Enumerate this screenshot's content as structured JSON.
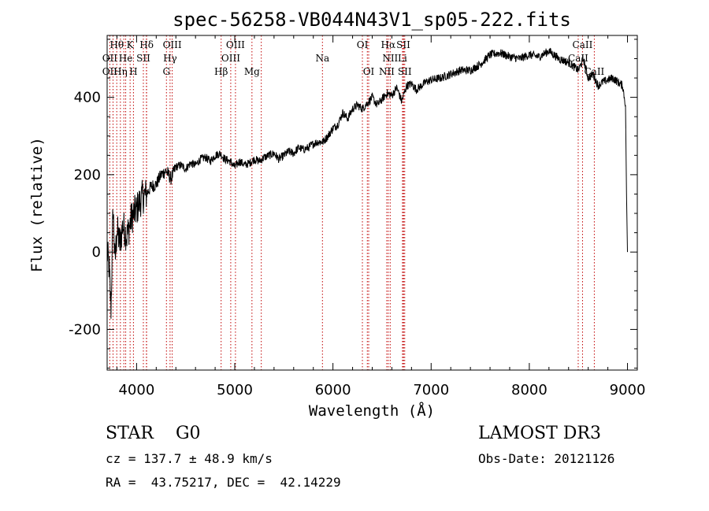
{
  "chart_data": {
    "type": "line",
    "title": "spec-56258-VB044N43V1_sp05-222.fits",
    "xlabel": "Wavelength (Å)",
    "ylabel": "Flux (relative)",
    "xlim": [
      3700,
      9100
    ],
    "ylim": [
      -305,
      560
    ],
    "x_ticks": [
      4000,
      5000,
      6000,
      7000,
      8000,
      9000
    ],
    "y_ticks": [
      -200,
      0,
      200,
      400
    ],
    "series": [
      {
        "name": "flux",
        "x": [
          3700,
          3720,
          3740,
          3760,
          3780,
          3800,
          3830,
          3860,
          3900,
          3950,
          4000,
          4050,
          4100,
          4150,
          4200,
          4250,
          4300,
          4350,
          4400,
          4450,
          4500,
          4550,
          4600,
          4650,
          4700,
          4750,
          4800,
          4850,
          4900,
          4950,
          5000,
          5050,
          5100,
          5150,
          5200,
          5250,
          5300,
          5350,
          5400,
          5450,
          5500,
          5550,
          5600,
          5650,
          5700,
          5750,
          5800,
          5850,
          5900,
          5950,
          6000,
          6050,
          6100,
          6150,
          6200,
          6250,
          6300,
          6350,
          6400,
          6450,
          6500,
          6550,
          6600,
          6650,
          6700,
          6750,
          6800,
          6850,
          6900,
          6950,
          7000,
          7100,
          7200,
          7300,
          7400,
          7500,
          7600,
          7700,
          7800,
          7900,
          8000,
          8100,
          8200,
          8300,
          8400,
          8500,
          8550,
          8600,
          8650,
          8700,
          8750,
          8800,
          8850,
          8900,
          8950,
          8980,
          8990,
          9000
        ],
        "y": [
          0,
          -40,
          -150,
          120,
          -30,
          60,
          20,
          70,
          40,
          90,
          110,
          140,
          150,
          170,
          175,
          200,
          210,
          190,
          220,
          225,
          215,
          230,
          225,
          240,
          245,
          235,
          250,
          255,
          240,
          235,
          220,
          235,
          225,
          230,
          240,
          235,
          245,
          250,
          255,
          240,
          250,
          260,
          255,
          270,
          265,
          270,
          280,
          285,
          285,
          300,
          320,
          330,
          360,
          345,
          370,
          380,
          370,
          385,
          400,
          380,
          395,
          410,
          405,
          425,
          390,
          430,
          435,
          420,
          430,
          440,
          445,
          450,
          460,
          470,
          470,
          485,
          510,
          515,
          505,
          500,
          510,
          505,
          520,
          500,
          490,
          470,
          500,
          450,
          460,
          430,
          440,
          445,
          450,
          440,
          430,
          380,
          150,
          0
        ]
      }
    ],
    "spectral_lines": [
      {
        "row": 0,
        "label": "Hθ",
        "wl": 3798
      },
      {
        "row": 0,
        "label": "K",
        "wl": 3934
      },
      {
        "row": 0,
        "label": "Hδ",
        "wl": 4102
      },
      {
        "row": 0,
        "label": "OIII",
        "wl": 4363
      },
      {
        "row": 0,
        "label": "OIII",
        "wl": 5007
      },
      {
        "row": 0,
        "label": "OI",
        "wl": 6300
      },
      {
        "row": 0,
        "label": "Hα",
        "wl": 6563
      },
      {
        "row": 0,
        "label": "SII",
        "wl": 6717
      },
      {
        "row": 0,
        "label": "CaII",
        "wl": 8542
      },
      {
        "row": 1,
        "label": "OII",
        "wl": 3727
      },
      {
        "row": 1,
        "label": "He",
        "wl": 3889
      },
      {
        "row": 1,
        "label": "SII",
        "wl": 4069
      },
      {
        "row": 1,
        "label": "Hγ",
        "wl": 4341
      },
      {
        "row": 1,
        "label": "OIII",
        "wl": 4959
      },
      {
        "row": 1,
        "label": "Na",
        "wl": 5893
      },
      {
        "row": 1,
        "label": "NII",
        "wl": 6583
      },
      {
        "row": 1,
        "label": "Li",
        "wl": 6708
      },
      {
        "row": 1,
        "label": "CaII",
        "wl": 8498
      },
      {
        "row": 2,
        "label": "OII",
        "wl": 3727
      },
      {
        "row": 2,
        "label": "Hη",
        "wl": 3835
      },
      {
        "row": 2,
        "label": "H",
        "wl": 3968
      },
      {
        "row": 2,
        "label": "G",
        "wl": 4304
      },
      {
        "row": 2,
        "label": "Hβ",
        "wl": 4861
      },
      {
        "row": 2,
        "label": "Mg",
        "wl": 5175
      },
      {
        "row": 2,
        "label": "OI",
        "wl": 6364
      },
      {
        "row": 2,
        "label": "NII",
        "wl": 6548
      },
      {
        "row": 2,
        "label": "SII",
        "wl": 6731
      },
      {
        "row": 2,
        "label": "CaII",
        "wl": 8662
      }
    ],
    "extra_red_lines": [
      3760,
      3870,
      4100,
      5270,
      6350,
      6720
    ]
  },
  "info": {
    "class_text": "STAR    G0",
    "survey_text": "LAMOST DR3",
    "cz_text": "cz = 137.7 ± 48.9 km/s",
    "obs_date_text": "Obs-Date: 20121126",
    "radec_text": "RA =  43.75217, DEC =  42.14229"
  }
}
